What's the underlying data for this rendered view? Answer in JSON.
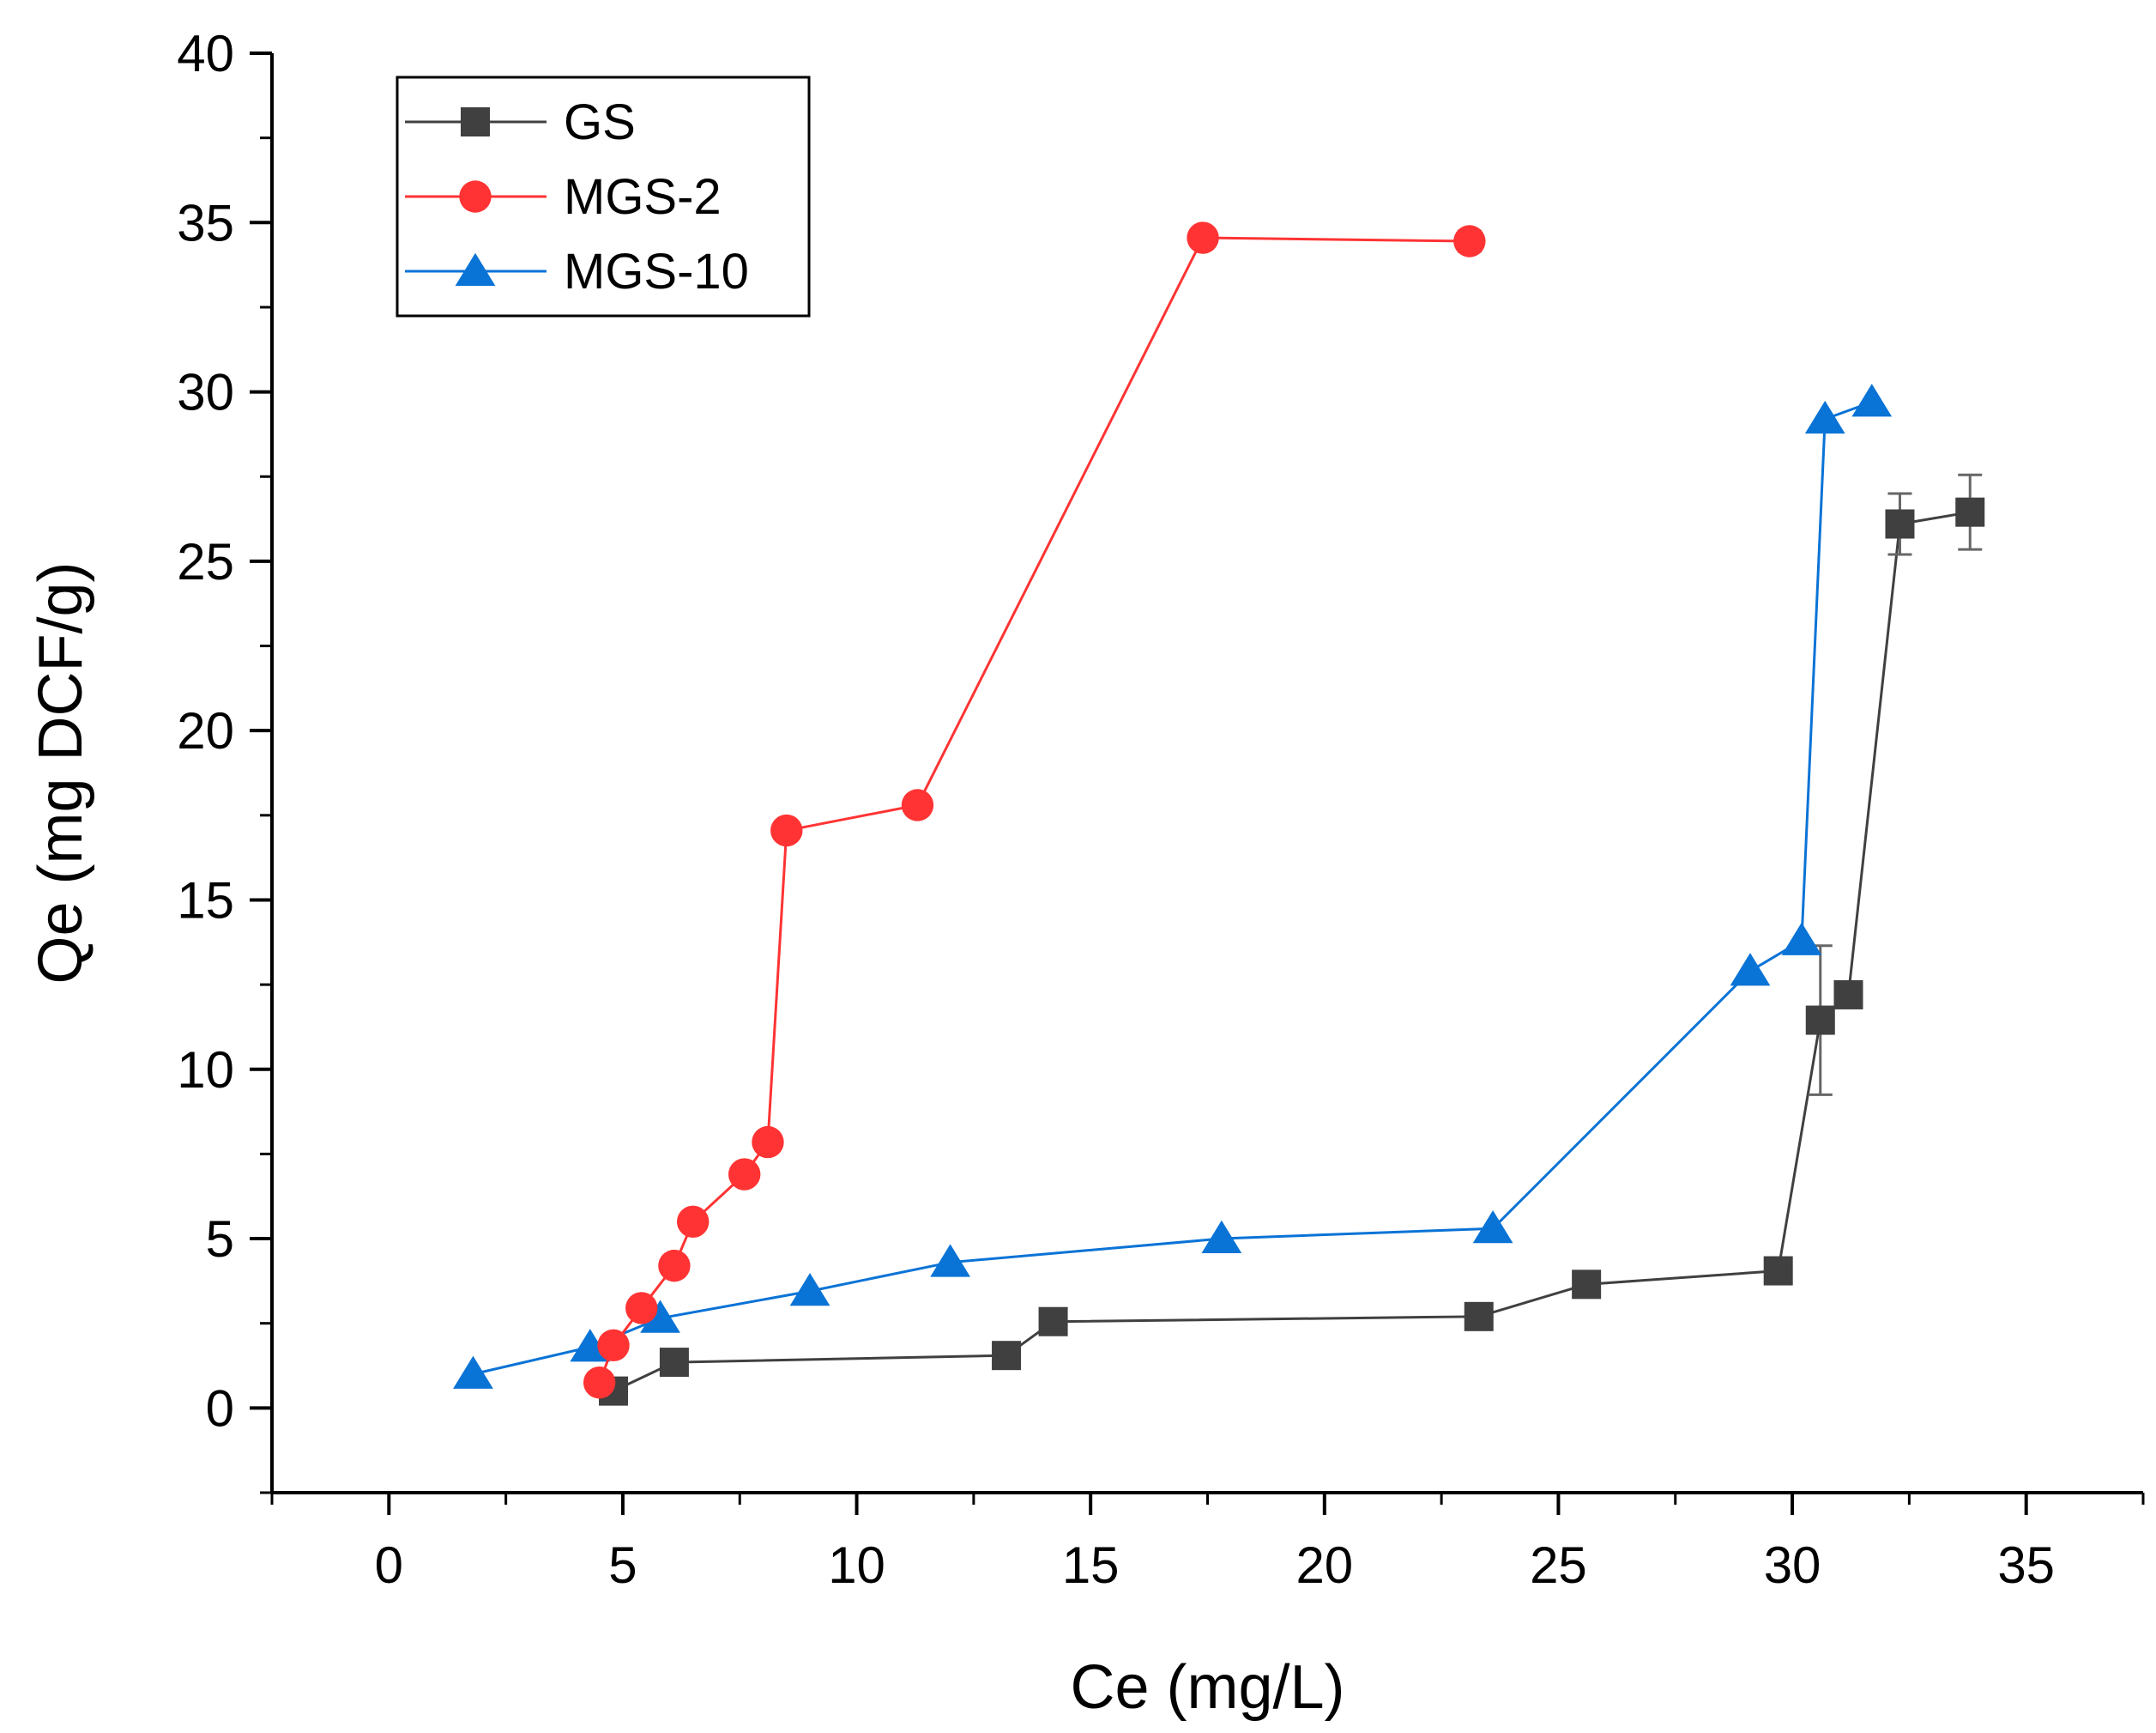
{
  "chart_data": {
    "type": "scatter",
    "title": "",
    "xlabel": "Ce (mg/L)",
    "ylabel": "Qe (mg DCF/g)",
    "xlim": [
      -2.5,
      37.5
    ],
    "ylim": [
      -2.5,
      40
    ],
    "xticks": [
      0,
      5,
      10,
      15,
      20,
      25,
      30,
      35
    ],
    "yticks": [
      0,
      5,
      10,
      15,
      20,
      25,
      30,
      35,
      40
    ],
    "grid": false,
    "legend_position": "top-left",
    "series": [
      {
        "name": "GS",
        "color": "#404040",
        "marker": "square",
        "points": [
          {
            "x": 4.8,
            "y": 0.5
          },
          {
            "x": 6.1,
            "y": 1.35
          },
          {
            "x": 13.2,
            "y": 1.55
          },
          {
            "x": 14.2,
            "y": 2.55
          },
          {
            "x": 23.3,
            "y": 2.7
          },
          {
            "x": 25.6,
            "y": 3.65
          },
          {
            "x": 29.7,
            "y": 4.05
          },
          {
            "x": 30.6,
            "y": 11.45,
            "err": 2.2
          },
          {
            "x": 31.2,
            "y": 12.2
          },
          {
            "x": 32.3,
            "y": 26.1,
            "err": 0.9
          },
          {
            "x": 33.8,
            "y": 26.45,
            "err": 1.1
          }
        ]
      },
      {
        "name": "MGS-2",
        "color": "#ff3333",
        "marker": "circle",
        "points": [
          {
            "x": 4.5,
            "y": 0.75
          },
          {
            "x": 4.8,
            "y": 1.85
          },
          {
            "x": 5.4,
            "y": 2.95
          },
          {
            "x": 6.1,
            "y": 4.2
          },
          {
            "x": 6.5,
            "y": 5.5
          },
          {
            "x": 7.6,
            "y": 6.9
          },
          {
            "x": 8.1,
            "y": 7.85
          },
          {
            "x": 8.5,
            "y": 17.05
          },
          {
            "x": 11.3,
            "y": 17.8
          },
          {
            "x": 17.4,
            "y": 34.55
          },
          {
            "x": 23.1,
            "y": 34.45,
            "err": 0.3
          }
        ]
      },
      {
        "name": "MGS-10",
        "color": "#0a73d6",
        "marker": "triangle",
        "points": [
          {
            "x": 1.8,
            "y": 1.0
          },
          {
            "x": 4.3,
            "y": 1.8
          },
          {
            "x": 5.8,
            "y": 2.65
          },
          {
            "x": 9.0,
            "y": 3.45
          },
          {
            "x": 12.0,
            "y": 4.3
          },
          {
            "x": 17.8,
            "y": 5.0
          },
          {
            "x": 23.6,
            "y": 5.3
          },
          {
            "x": 29.1,
            "y": 12.9
          },
          {
            "x": 30.2,
            "y": 13.8
          },
          {
            "x": 30.7,
            "y": 29.2
          },
          {
            "x": 31.7,
            "y": 29.7
          }
        ]
      }
    ]
  }
}
